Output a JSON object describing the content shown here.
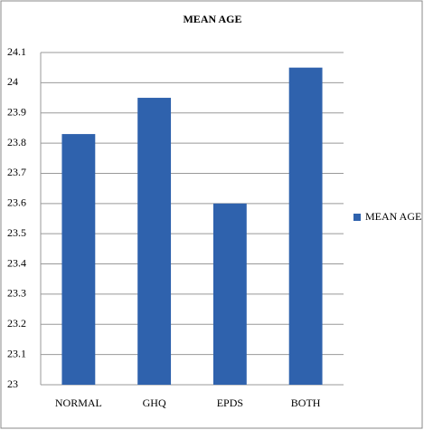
{
  "chart_data": {
    "type": "bar",
    "title": "MEAN AGE",
    "categories": [
      "NORMAL",
      "GHQ",
      "EPDS",
      "BOTH"
    ],
    "series": [
      {
        "name": "MEAN AGE",
        "color": "#2f62ad",
        "values": [
          23.83,
          23.95,
          23.6,
          24.05
        ]
      }
    ],
    "ylim": [
      23,
      24.1
    ],
    "yticks": [
      23,
      23.1,
      23.2,
      23.3,
      23.4,
      23.5,
      23.6,
      23.7,
      23.8,
      23.9,
      24,
      24.1
    ],
    "grid": true,
    "legend": "right"
  }
}
